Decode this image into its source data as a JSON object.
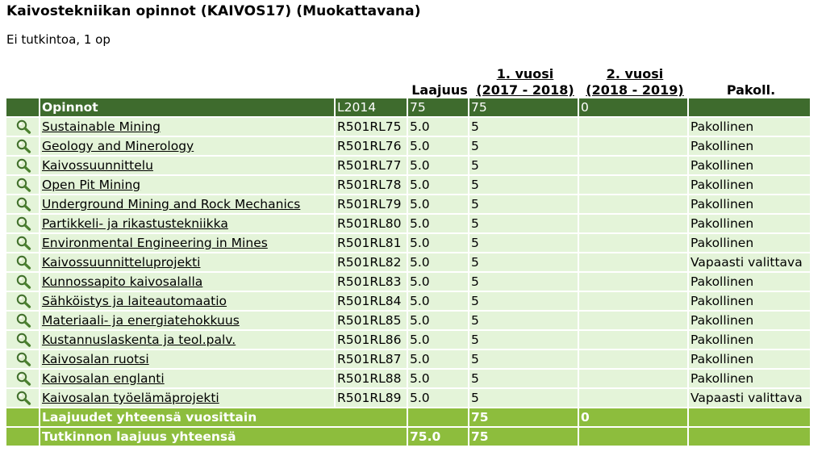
{
  "page": {
    "title": "Kaivostekniikan opinnot (KAIVOS17) (Muokattavana)",
    "subtitle": "Ei tutkintoa, 1 op"
  },
  "table": {
    "headers": {
      "laajuus": "Laajuus",
      "year1_line1": "1. vuosi",
      "year1_line2": "(2017 - 2018)",
      "year2_line1": "2. vuosi",
      "year2_line2": "(2018 - 2019)",
      "pakoll": "Pakoll."
    },
    "group": {
      "name": "Opinnot",
      "code": "L2014",
      "laajuus": "75",
      "year1": "75",
      "year2": "0"
    },
    "rows": [
      {
        "name": "Sustainable Mining",
        "code": "R501RL75",
        "laajuus": "5.0",
        "year1": "5",
        "type": "Pakollinen"
      },
      {
        "name": "Geology and Minerology",
        "code": "R501RL76",
        "laajuus": "5.0",
        "year1": "5",
        "type": "Pakollinen"
      },
      {
        "name": "Kaivossuunnittelu",
        "code": "R501RL77",
        "laajuus": "5.0",
        "year1": "5",
        "type": "Pakollinen"
      },
      {
        "name": "Open Pit Mining",
        "code": "R501RL78",
        "laajuus": "5.0",
        "year1": "5",
        "type": "Pakollinen"
      },
      {
        "name": "Underground Mining and Rock Mechanics",
        "code": "R501RL79",
        "laajuus": "5.0",
        "year1": "5",
        "type": "Pakollinen"
      },
      {
        "name": "Partikkeli- ja rikastustekniikka",
        "code": "R501RL80",
        "laajuus": "5.0",
        "year1": "5",
        "type": "Pakollinen"
      },
      {
        "name": "Environmental Engineering in Mines",
        "code": "R501RL81",
        "laajuus": "5.0",
        "year1": "5",
        "type": "Pakollinen"
      },
      {
        "name": "Kaivossuunnitteluprojekti",
        "code": "R501RL82",
        "laajuus": "5.0",
        "year1": "5",
        "type": "Vapaasti valittava"
      },
      {
        "name": "Kunnossapito kaivosalalla",
        "code": "R501RL83",
        "laajuus": "5.0",
        "year1": "5",
        "type": "Pakollinen"
      },
      {
        "name": "Sähköistys ja laiteautomaatio",
        "code": "R501RL84",
        "laajuus": "5.0",
        "year1": "5",
        "type": "Pakollinen"
      },
      {
        "name": "Materiaali- ja energiatehokkuus",
        "code": "R501RL85",
        "laajuus": "5.0",
        "year1": "5",
        "type": "Pakollinen"
      },
      {
        "name": "Kustannuslaskenta ja teol.palv.",
        "code": "R501RL86",
        "laajuus": "5.0",
        "year1": "5",
        "type": "Pakollinen"
      },
      {
        "name": "Kaivosalan ruotsi",
        "code": "R501RL87",
        "laajuus": "5.0",
        "year1": "5",
        "type": "Pakollinen"
      },
      {
        "name": "Kaivosalan englanti",
        "code": "R501RL88",
        "laajuus": "5.0",
        "year1": "5",
        "type": "Pakollinen"
      },
      {
        "name": "Kaivosalan työelämäprojekti",
        "code": "R501RL89",
        "laajuus": "5.0",
        "year1": "5",
        "type": "Vapaasti valittava"
      }
    ],
    "summary": {
      "per_year_label": "Laajuudet yhteensä vuosittain",
      "per_year_year1": "75",
      "per_year_year2": "0",
      "total_label": "Tutkinnon laajuus yhteensä",
      "total_laajuus": "75.0",
      "total_year1": "75"
    },
    "icon": "magnifier-icon"
  }
}
